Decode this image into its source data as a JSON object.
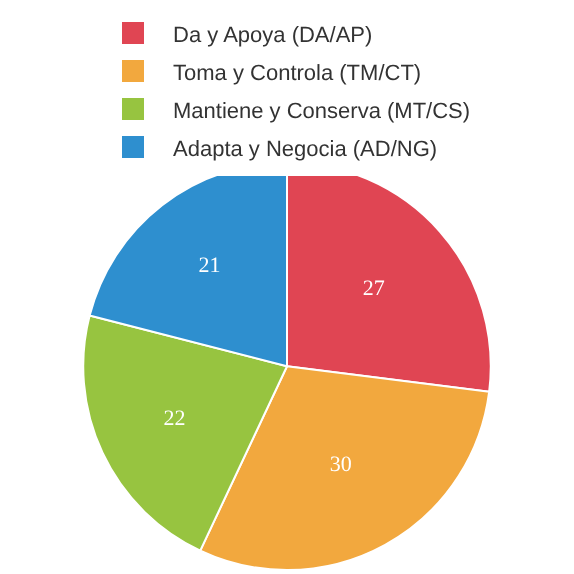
{
  "chart_data": {
    "type": "pie",
    "categories": [
      "Da y Apoya (DA/AP)",
      "Toma y Controla (TM/CT)",
      "Mantiene y Conserva (MT/CS)",
      "Adapta y Negocia (AD/NG)"
    ],
    "values": [
      27,
      30,
      22,
      21
    ],
    "colors": [
      "#e04553",
      "#f2a83e",
      "#97c440",
      "#2e8fcf"
    ],
    "data_labels": true,
    "legend": "top"
  }
}
